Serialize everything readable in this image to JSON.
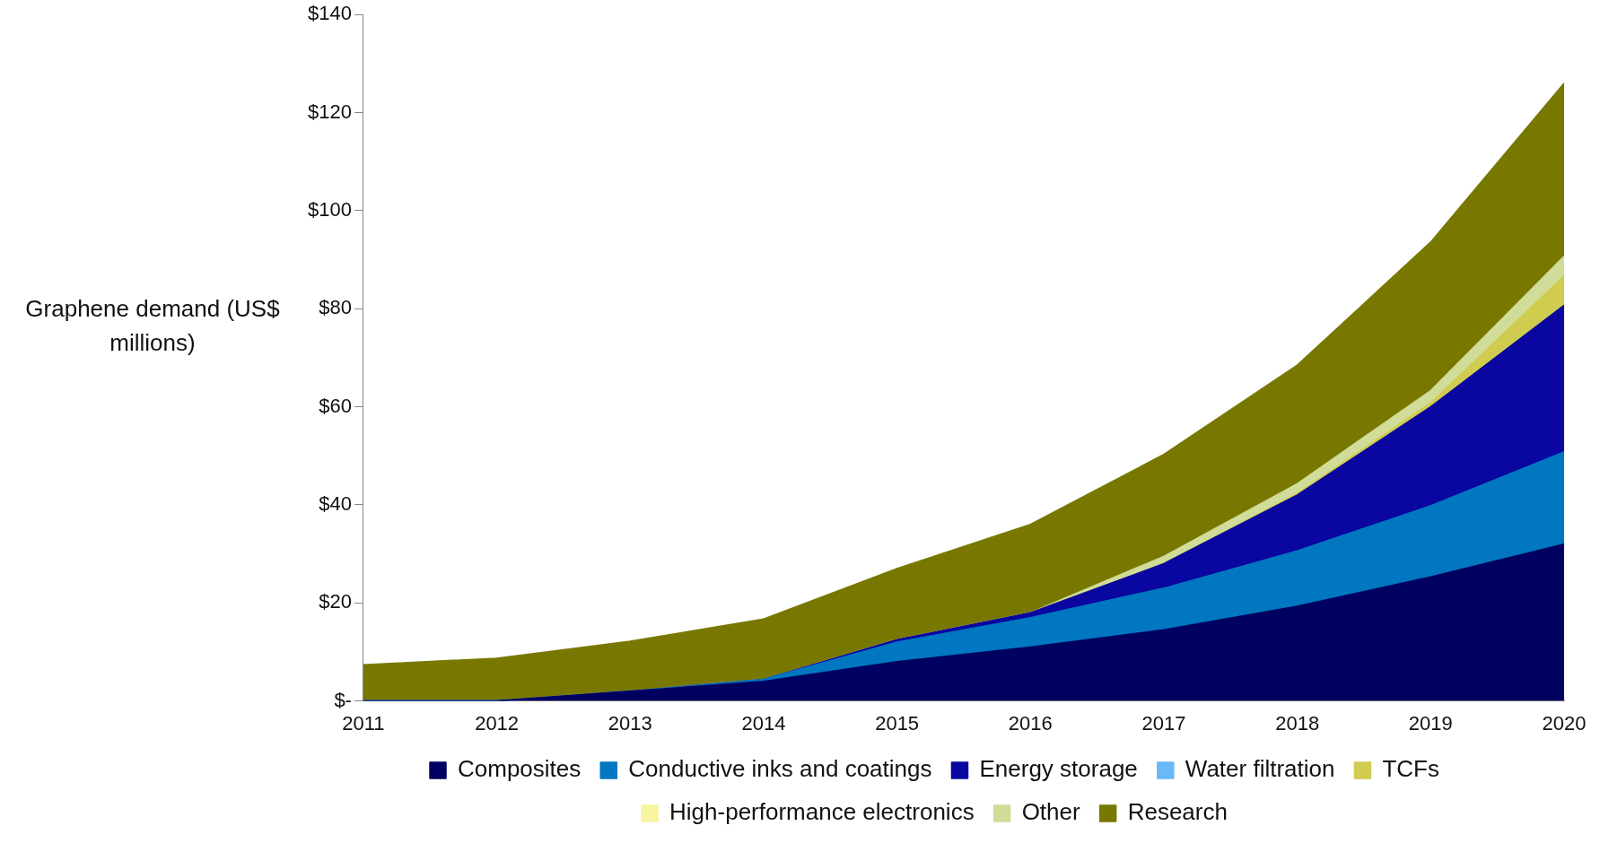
{
  "chart_data": {
    "type": "area",
    "stacked": true,
    "ylabel": "Graphene demand (US$ millions)",
    "categories": [
      "2011",
      "2012",
      "2013",
      "2014",
      "2015",
      "2016",
      "2017",
      "2018",
      "2019",
      "2020"
    ],
    "series": [
      {
        "name": "Composites",
        "color": "#000060",
        "values": [
          0,
          0,
          2,
          4,
          8,
          11,
          14.5,
          19.3,
          25.3,
          32
        ]
      },
      {
        "name": "Conductive inks and coatings",
        "color": "#0077c0",
        "values": [
          0,
          0,
          0,
          0.4,
          4,
          6,
          8.5,
          11.3,
          14.5,
          18.8
        ]
      },
      {
        "name": "Energy storage",
        "color": "#0a06a0",
        "values": [
          0,
          0,
          0,
          0,
          0.5,
          1,
          5,
          11.4,
          20.2,
          29.9
        ]
      },
      {
        "name": "Water filtration",
        "color": "#6ab8f8",
        "values": [
          null,
          null,
          null,
          null,
          null,
          null,
          null,
          null,
          null,
          null
        ]
      },
      {
        "name": "TCFs",
        "color": "#d0cc50",
        "values": [
          0,
          0,
          0,
          0,
          0,
          0,
          0,
          0.3,
          0.8,
          6
        ]
      },
      {
        "name": "High-performance electronics",
        "color": "#f8f4a0",
        "values": [
          null,
          null,
          null,
          null,
          null,
          null,
          null,
          null,
          null,
          null
        ]
      },
      {
        "name": "Other",
        "color": "#d0dc98",
        "values": [
          0,
          0,
          0,
          0,
          0,
          0,
          1.5,
          2,
          2.5,
          4
        ]
      },
      {
        "name": "Research",
        "color": "#787800",
        "values": [
          7.4,
          8.7,
          10.2,
          12.3,
          14.5,
          18,
          20.8,
          24.2,
          30.3,
          35.3
        ]
      }
    ],
    "ylim": [
      0,
      140
    ],
    "yticks": [
      {
        "value": 0,
        "label": "$-"
      },
      {
        "value": 20,
        "label": "$20"
      },
      {
        "value": 40,
        "label": "$40"
      },
      {
        "value": 60,
        "label": "$60"
      },
      {
        "value": 80,
        "label": "$80"
      },
      {
        "value": 100,
        "label": "$100"
      },
      {
        "value": 120,
        "label": "$120"
      },
      {
        "value": 140,
        "label": "$140"
      }
    ],
    "grid": false,
    "legend": "bottom"
  }
}
